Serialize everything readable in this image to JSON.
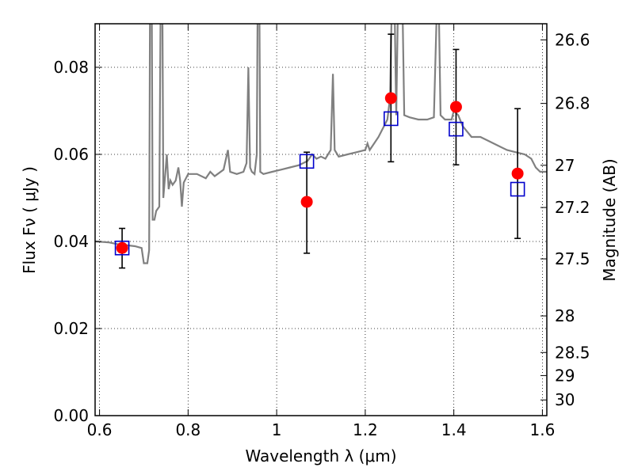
{
  "chart_data": {
    "type": "scatter",
    "xlabel": "Wavelength  λ (μm)",
    "ylabel": "Flux  Fν  ( μJy )",
    "ylabel_right": "Magnitude (AB)",
    "xlim": [
      0.59,
      1.61
    ],
    "ylim": [
      0.0,
      0.09
    ],
    "grid": true,
    "x_ticks": [
      0.6,
      0.8,
      1.0,
      1.2,
      1.4,
      1.6
    ],
    "x_tick_labels": [
      "0.6",
      "0.8",
      "1",
      "1.2",
      "1.4",
      "1.6"
    ],
    "y_ticks": [
      0.0,
      0.02,
      0.04,
      0.06,
      0.08
    ],
    "y_tick_labels": [
      "0.00",
      "0.02",
      "0.04",
      "0.06",
      "0.08"
    ],
    "right_ticks": [
      {
        "flux": 0.0863,
        "label": "26.6"
      },
      {
        "flux": 0.0717,
        "label": "26.8"
      },
      {
        "flux": 0.0575,
        "label": "27"
      },
      {
        "flux": 0.0478,
        "label": "27.2"
      },
      {
        "flux": 0.036,
        "label": "27.5"
      },
      {
        "flux": 0.0229,
        "label": "28"
      },
      {
        "flux": 0.0145,
        "label": "28.5"
      },
      {
        "flux": 0.0092,
        "label": "29"
      },
      {
        "flux": 0.0036,
        "label": "30"
      }
    ],
    "series": [
      {
        "marker": "circle",
        "color": "#ff0000",
        "points": [
          {
            "x": 0.651,
            "y": 0.0385
          },
          {
            "x": 1.068,
            "y": 0.0491
          },
          {
            "x": 1.258,
            "y": 0.0729
          },
          {
            "x": 1.405,
            "y": 0.0709
          },
          {
            "x": 1.544,
            "y": 0.0556
          }
        ]
      },
      {
        "marker": "open-square",
        "color": "#0000cc",
        "points": [
          {
            "x": 0.651,
            "y": 0.0385,
            "err_lo": 0.0339,
            "err_hi": 0.043
          },
          {
            "x": 1.068,
            "y": 0.0584,
            "err_lo": 0.0373,
            "err_hi": 0.0605
          },
          {
            "x": 1.258,
            "y": 0.0682,
            "err_lo": 0.0583,
            "err_hi": 0.0876
          },
          {
            "x": 1.405,
            "y": 0.0658,
            "err_lo": 0.0576,
            "err_hi": 0.0841
          },
          {
            "x": 1.544,
            "y": 0.052,
            "err_lo": 0.0407,
            "err_hi": 0.0705
          }
        ]
      },
      {
        "marker": "line",
        "color": "#808080",
        "points": [
          {
            "x": 0.59,
            "y": 0.04
          },
          {
            "x": 0.62,
            "y": 0.0398
          },
          {
            "x": 0.64,
            "y": 0.0394
          },
          {
            "x": 0.68,
            "y": 0.0389
          },
          {
            "x": 0.695,
            "y": 0.0385
          },
          {
            "x": 0.7,
            "y": 0.035
          },
          {
            "x": 0.708,
            "y": 0.035
          },
          {
            "x": 0.712,
            "y": 0.038
          },
          {
            "x": 0.714,
            "y": 0.095
          },
          {
            "x": 0.718,
            "y": 0.095
          },
          {
            "x": 0.72,
            "y": 0.045
          },
          {
            "x": 0.724,
            "y": 0.045
          },
          {
            "x": 0.728,
            "y": 0.047
          },
          {
            "x": 0.735,
            "y": 0.048
          },
          {
            "x": 0.738,
            "y": 0.095
          },
          {
            "x": 0.742,
            "y": 0.095
          },
          {
            "x": 0.744,
            "y": 0.05
          },
          {
            "x": 0.748,
            "y": 0.055
          },
          {
            "x": 0.752,
            "y": 0.06
          },
          {
            "x": 0.756,
            "y": 0.052
          },
          {
            "x": 0.76,
            "y": 0.054
          },
          {
            "x": 0.765,
            "y": 0.053
          },
          {
            "x": 0.772,
            "y": 0.054
          },
          {
            "x": 0.778,
            "y": 0.057
          },
          {
            "x": 0.782,
            "y": 0.054
          },
          {
            "x": 0.786,
            "y": 0.048
          },
          {
            "x": 0.79,
            "y": 0.0535
          },
          {
            "x": 0.8,
            "y": 0.0555
          },
          {
            "x": 0.82,
            "y": 0.0555
          },
          {
            "x": 0.84,
            "y": 0.0545
          },
          {
            "x": 0.85,
            "y": 0.056
          },
          {
            "x": 0.86,
            "y": 0.055
          },
          {
            "x": 0.88,
            "y": 0.0565
          },
          {
            "x": 0.89,
            "y": 0.061
          },
          {
            "x": 0.895,
            "y": 0.056
          },
          {
            "x": 0.91,
            "y": 0.0555
          },
          {
            "x": 0.925,
            "y": 0.056
          },
          {
            "x": 0.932,
            "y": 0.058
          },
          {
            "x": 0.936,
            "y": 0.08
          },
          {
            "x": 0.94,
            "y": 0.057
          },
          {
            "x": 0.944,
            "y": 0.056
          },
          {
            "x": 0.95,
            "y": 0.0555
          },
          {
            "x": 0.955,
            "y": 0.06
          },
          {
            "x": 0.957,
            "y": 0.095
          },
          {
            "x": 0.961,
            "y": 0.095
          },
          {
            "x": 0.963,
            "y": 0.056
          },
          {
            "x": 0.97,
            "y": 0.0555
          },
          {
            "x": 0.99,
            "y": 0.056
          },
          {
            "x": 1.01,
            "y": 0.0565
          },
          {
            "x": 1.03,
            "y": 0.057
          },
          {
            "x": 1.05,
            "y": 0.0575
          },
          {
            "x": 1.07,
            "y": 0.0585
          },
          {
            "x": 1.08,
            "y": 0.06
          },
          {
            "x": 1.09,
            "y": 0.059
          },
          {
            "x": 1.1,
            "y": 0.0595
          },
          {
            "x": 1.11,
            "y": 0.059
          },
          {
            "x": 1.122,
            "y": 0.061
          },
          {
            "x": 1.127,
            "y": 0.0785
          },
          {
            "x": 1.131,
            "y": 0.061
          },
          {
            "x": 1.14,
            "y": 0.0595
          },
          {
            "x": 1.16,
            "y": 0.06
          },
          {
            "x": 1.18,
            "y": 0.0605
          },
          {
            "x": 1.2,
            "y": 0.061
          },
          {
            "x": 1.205,
            "y": 0.0625
          },
          {
            "x": 1.21,
            "y": 0.061
          },
          {
            "x": 1.23,
            "y": 0.064
          },
          {
            "x": 1.24,
            "y": 0.066
          },
          {
            "x": 1.25,
            "y": 0.068
          },
          {
            "x": 1.256,
            "y": 0.073
          },
          {
            "x": 1.26,
            "y": 0.095
          },
          {
            "x": 1.266,
            "y": 0.095
          },
          {
            "x": 1.27,
            "y": 0.069
          },
          {
            "x": 1.274,
            "y": 0.095
          },
          {
            "x": 1.284,
            "y": 0.095
          },
          {
            "x": 1.288,
            "y": 0.069
          },
          {
            "x": 1.3,
            "y": 0.0685
          },
          {
            "x": 1.32,
            "y": 0.068
          },
          {
            "x": 1.34,
            "y": 0.068
          },
          {
            "x": 1.355,
            "y": 0.0685
          },
          {
            "x": 1.362,
            "y": 0.095
          },
          {
            "x": 1.366,
            "y": 0.095
          },
          {
            "x": 1.37,
            "y": 0.069
          },
          {
            "x": 1.38,
            "y": 0.068
          },
          {
            "x": 1.395,
            "y": 0.068
          },
          {
            "x": 1.4,
            "y": 0.07
          },
          {
            "x": 1.41,
            "y": 0.069
          },
          {
            "x": 1.42,
            "y": 0.0665
          },
          {
            "x": 1.44,
            "y": 0.064
          },
          {
            "x": 1.46,
            "y": 0.064
          },
          {
            "x": 1.48,
            "y": 0.063
          },
          {
            "x": 1.5,
            "y": 0.062
          },
          {
            "x": 1.52,
            "y": 0.061
          },
          {
            "x": 1.54,
            "y": 0.0605
          },
          {
            "x": 1.56,
            "y": 0.06
          },
          {
            "x": 1.575,
            "y": 0.059
          },
          {
            "x": 1.585,
            "y": 0.057
          },
          {
            "x": 1.595,
            "y": 0.056
          },
          {
            "x": 1.61,
            "y": 0.056
          }
        ]
      }
    ]
  }
}
